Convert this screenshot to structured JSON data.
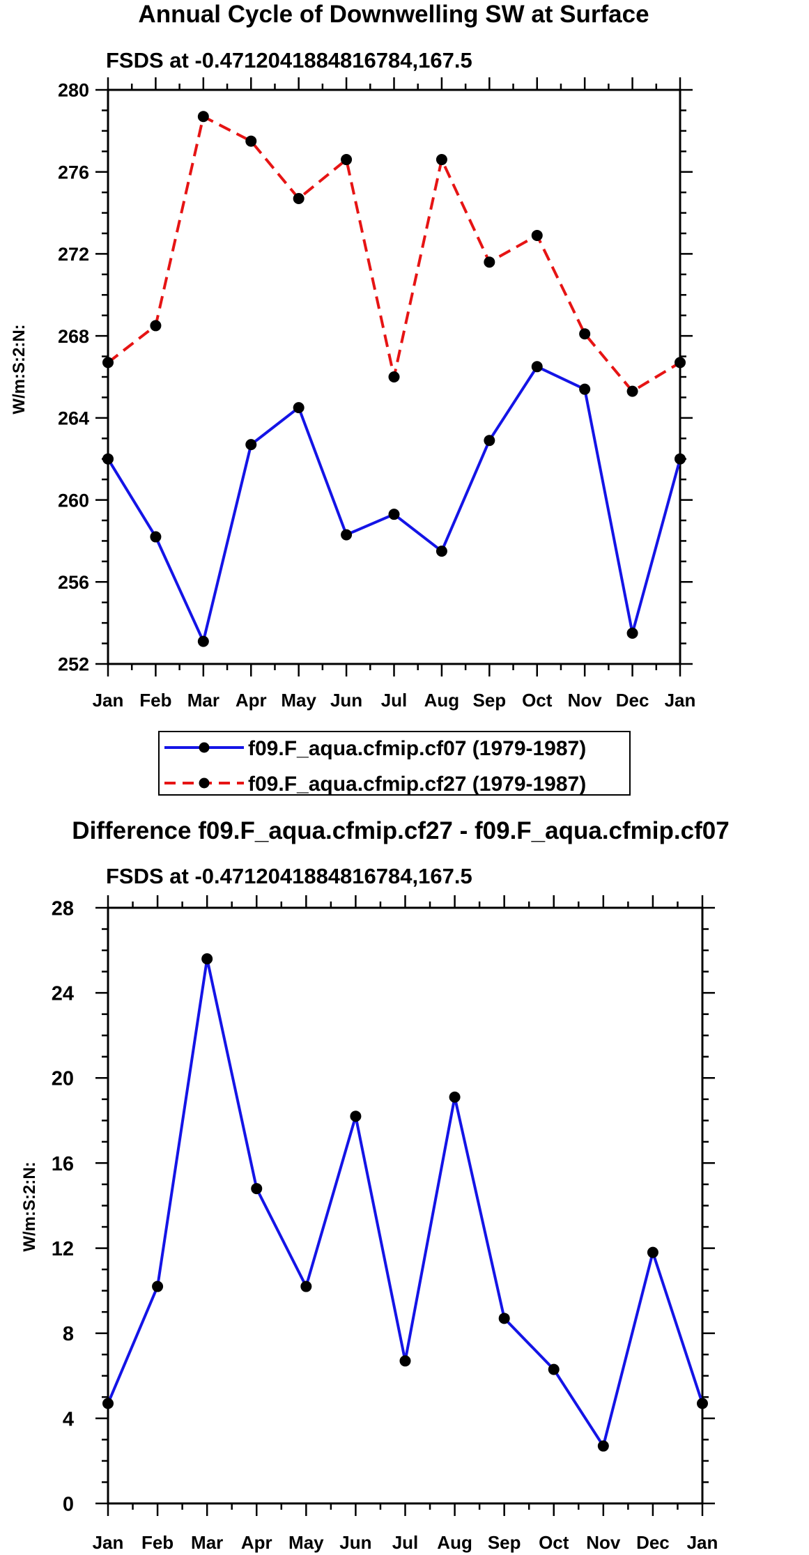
{
  "chart_data": [
    {
      "type": "line",
      "title": "Annual Cycle of Downwelling SW at Surface",
      "subtitle": "FSDS at -0.4712041884816784,167.5",
      "ylabel": "W/m:S:2:N:",
      "xlabel": "",
      "categories": [
        "Jan",
        "Feb",
        "Mar",
        "Apr",
        "May",
        "Jun",
        "Jul",
        "Aug",
        "Sep",
        "Oct",
        "Nov",
        "Dec",
        "Jan"
      ],
      "ylim": [
        252,
        280
      ],
      "yticks": [
        252,
        256,
        260,
        264,
        268,
        272,
        276,
        280
      ],
      "ytick_labels": [
        "252",
        "256",
        "260",
        "264",
        "268",
        "272",
        "276",
        "280"
      ],
      "series": [
        {
          "name": "f09.F_aqua.cfmip.cf07 (1979-1987)",
          "color": "#1414e6",
          "dash": "solid",
          "values": [
            262.0,
            258.2,
            253.1,
            262.7,
            264.5,
            258.3,
            259.3,
            257.5,
            262.9,
            266.5,
            265.4,
            253.5,
            262.0
          ]
        },
        {
          "name": "f09.F_aqua.cfmip.cf27 (1979-1987)",
          "color": "#e61414",
          "dash": "dashed",
          "values": [
            266.7,
            268.5,
            278.7,
            277.5,
            274.7,
            276.6,
            266.0,
            276.6,
            271.6,
            272.9,
            268.1,
            265.3,
            266.7
          ]
        }
      ],
      "legend_position": "bottom-center"
    },
    {
      "type": "line",
      "title": "Difference f09.F_aqua.cfmip.cf27 - f09.F_aqua.cfmip.cf07",
      "subtitle": "FSDS at -0.4712041884816784,167.5",
      "ylabel": "W/m:S:2:N:",
      "xlabel": "",
      "categories": [
        "Jan",
        "Feb",
        "Mar",
        "Apr",
        "May",
        "Jun",
        "Jul",
        "Aug",
        "Sep",
        "Oct",
        "Nov",
        "Dec",
        "Jan"
      ],
      "ylim": [
        0,
        28
      ],
      "yticks": [
        0,
        4,
        8,
        12,
        16,
        20,
        24,
        28
      ],
      "ytick_labels": [
        "0",
        "4",
        "8",
        "12",
        "16",
        "20",
        "24",
        "28"
      ],
      "series": [
        {
          "name": "difference",
          "color": "#1414e6",
          "dash": "solid",
          "values": [
            4.7,
            10.2,
            25.6,
            14.8,
            10.2,
            18.2,
            6.7,
            19.1,
            8.7,
            6.3,
            2.7,
            11.8,
            4.7
          ]
        }
      ]
    }
  ]
}
